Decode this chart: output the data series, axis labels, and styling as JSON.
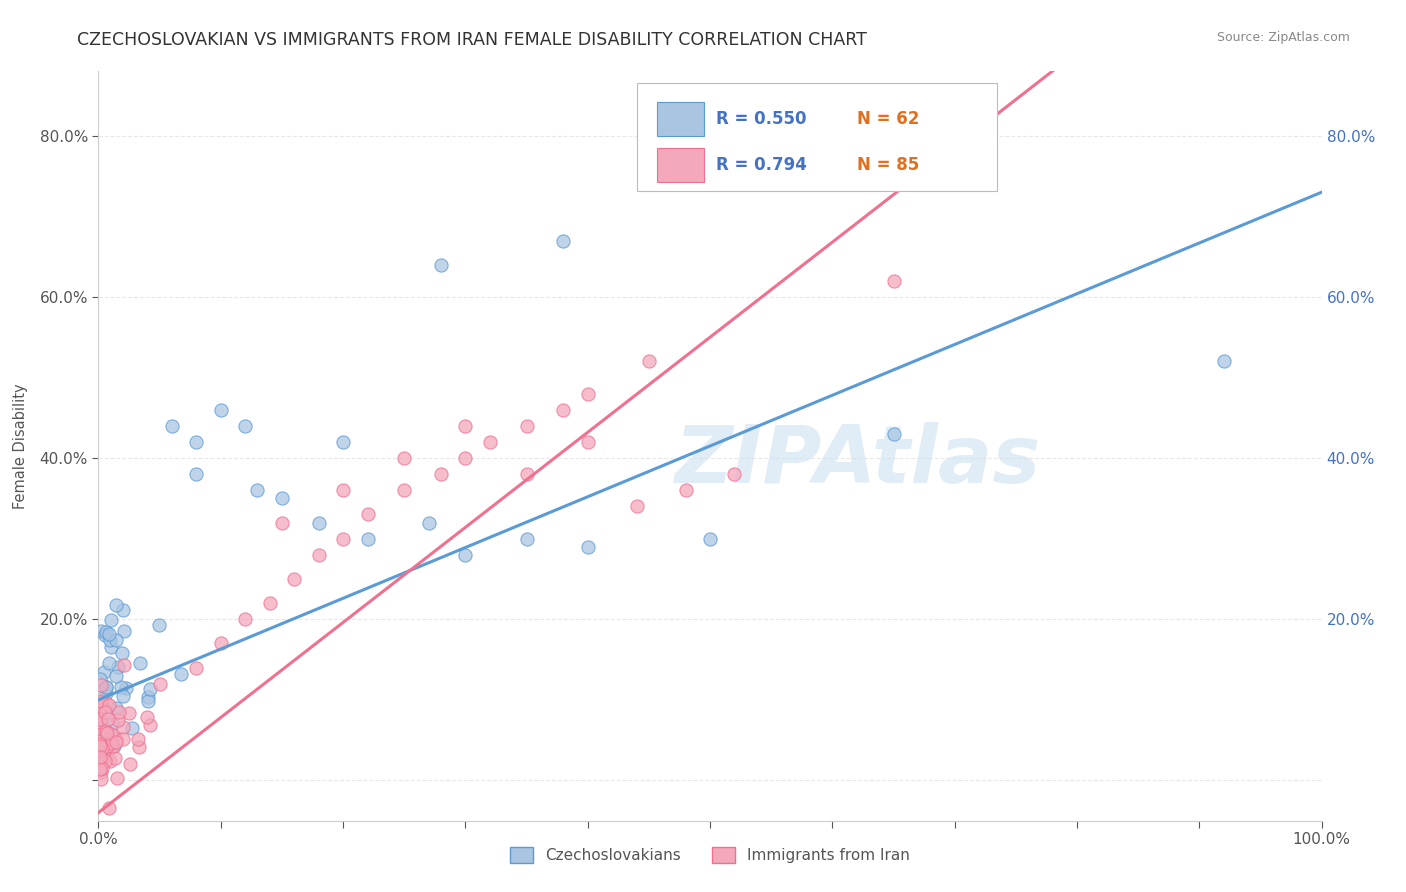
{
  "title": "CZECHOSLOVAKIAN VS IMMIGRANTS FROM IRAN FEMALE DISABILITY CORRELATION CHART",
  "source": "Source: ZipAtlas.com",
  "ylabel": "Female Disability",
  "watermark": "ZIPAtlas",
  "legend_r1": "R = 0.550",
  "legend_n1": "N = 62",
  "legend_r2": "R = 0.794",
  "legend_n2": "N = 85",
  "xlim": [
    0,
    1.0
  ],
  "ylim": [
    -0.05,
    0.88
  ],
  "xticks": [
    0.0,
    0.1,
    0.2,
    0.3,
    0.4,
    0.5,
    0.6,
    0.7,
    0.8,
    0.9,
    1.0
  ],
  "yticks": [
    0.0,
    0.2,
    0.4,
    0.6,
    0.8
  ],
  "ytick_labels_left": [
    "",
    "20.0%",
    "40.0%",
    "60.0%",
    "80.0%"
  ],
  "ytick_labels_right": [
    "",
    "20.0%",
    "40.0%",
    "60.0%",
    "80.0%"
  ],
  "xtick_labels": [
    "0.0%",
    "",
    "",
    "",
    "",
    "",
    "",
    "",
    "",
    "",
    "100.0%"
  ],
  "color_czech": "#aac5e2",
  "color_iran": "#f4a8bc",
  "color_line_czech": "#5b9bd5",
  "color_line_iran": "#f07090",
  "color_dashed": "#f0a0b0",
  "background_color": "#ffffff",
  "title_color": "#333333",
  "title_fontsize": 12.5,
  "axis_label_color": "#555555",
  "tick_color": "#555555",
  "right_tick_color": "#4472c4",
  "grid_color": "#e8e8e8",
  "grid_style": "--",
  "watermark_color": "#cce0f0",
  "watermark_alpha": 0.6
}
